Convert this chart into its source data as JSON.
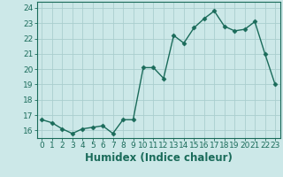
{
  "title": "",
  "xlabel": "Humidex (Indice chaleur)",
  "x": [
    0,
    1,
    2,
    3,
    4,
    5,
    6,
    7,
    8,
    9,
    10,
    11,
    12,
    13,
    14,
    15,
    16,
    17,
    18,
    19,
    20,
    21,
    22,
    23
  ],
  "y": [
    16.7,
    16.5,
    16.1,
    15.8,
    16.1,
    16.2,
    16.3,
    15.8,
    16.7,
    16.7,
    20.1,
    20.1,
    19.4,
    22.2,
    21.7,
    22.7,
    23.3,
    23.8,
    22.8,
    22.5,
    22.6,
    23.1,
    21.0,
    19.0
  ],
  "line_color": "#1a6b5a",
  "marker": "D",
  "marker_size": 2.5,
  "bg_color": "#cce8e8",
  "grid_color": "#aacece",
  "ylim": [
    15.5,
    24.4
  ],
  "xlim": [
    -0.5,
    23.5
  ],
  "yticks": [
    16,
    17,
    18,
    19,
    20,
    21,
    22,
    23,
    24
  ],
  "xticks": [
    0,
    1,
    2,
    3,
    4,
    5,
    6,
    7,
    8,
    9,
    10,
    11,
    12,
    13,
    14,
    15,
    16,
    17,
    18,
    19,
    20,
    21,
    22,
    23
  ],
  "tick_fontsize": 6.5,
  "xlabel_fontsize": 8.5
}
